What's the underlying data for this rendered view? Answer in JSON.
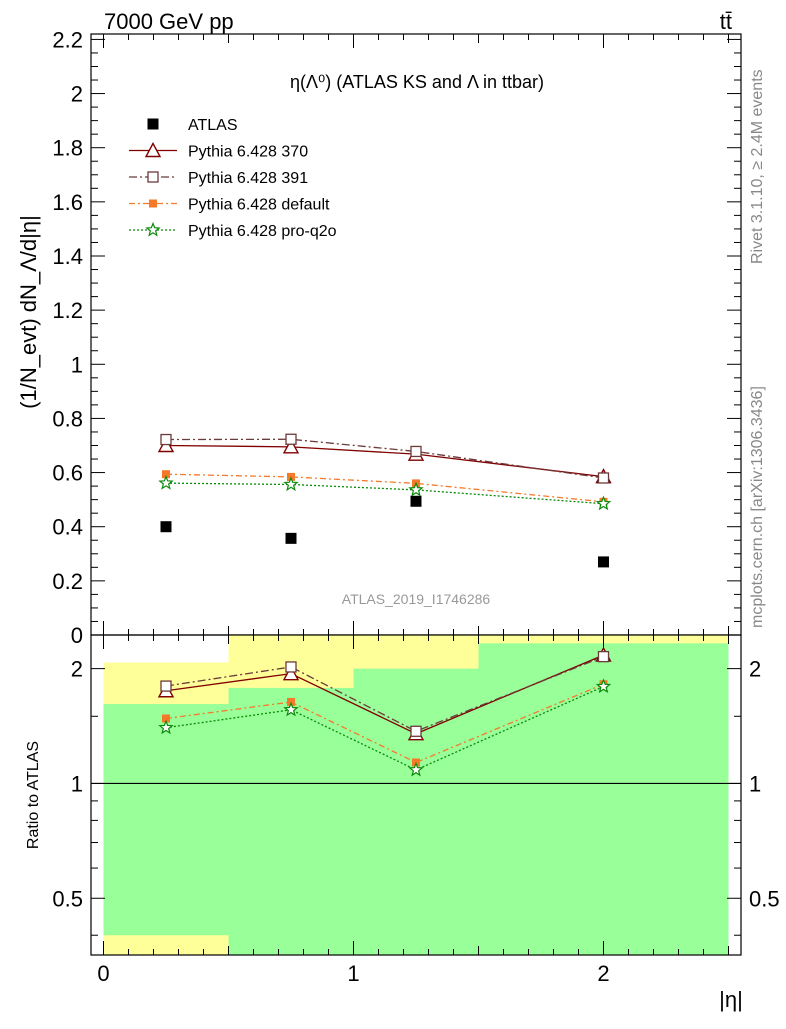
{
  "header": {
    "energy_label": "7000 GeV pp",
    "process_label": "tt̄"
  },
  "side_labels": {
    "rivet": "Rivet 3.1.10, ≥ 2.4M events",
    "mcplots": "mcplots.cern.ch [arXiv:1306.3436]"
  },
  "watermark": "ATLAS_2019_I1746286",
  "colors": {
    "atlas": "#000000",
    "p370": "#800000",
    "p391": "#6b3a3a",
    "pdefault": "#f47a2a",
    "pq2o": "#0a8a0a",
    "band_inner": "#99ff99",
    "band_outer": "#ffff99"
  },
  "chart_data": [
    {
      "type": "scatter",
      "panel": "main",
      "title": "η(Λ⁰) (ATLAS KS and Λ in ttbar)",
      "ylabel": "(1/N_evt) dN_Λ/d|η|",
      "xlim": [
        -0.05,
        2.55
      ],
      "ylim": [
        0,
        2.22
      ],
      "y_ticks": [
        0,
        0.2,
        0.4,
        0.6,
        0.8,
        1,
        1.2,
        1.4,
        1.6,
        1.8,
        2,
        2.2
      ],
      "y_tick_labels": [
        "0",
        "0.2",
        "0.4",
        "0.6",
        "0.8",
        "1",
        "1.2",
        "1.4",
        "1.6",
        "1.8",
        "2",
        "2.2"
      ],
      "x": [
        0.25,
        0.75,
        1.25,
        2.0
      ],
      "legend_position": "top-left",
      "series": [
        {
          "name": "ATLAS",
          "key": "atlas",
          "values": [
            0.4,
            0.357,
            0.494,
            0.27
          ]
        },
        {
          "name": "Pythia 6.428 370",
          "key": "p370",
          "values": [
            0.7,
            0.695,
            0.668,
            0.585
          ]
        },
        {
          "name": "Pythia 6.428 391",
          "key": "p391",
          "values": [
            0.722,
            0.723,
            0.678,
            0.58
          ]
        },
        {
          "name": "Pythia 6.428 default",
          "key": "pdefault",
          "values": [
            0.594,
            0.584,
            0.56,
            0.492
          ]
        },
        {
          "name": "Pythia 6.428 pro-q2o",
          "key": "pq2o",
          "values": [
            0.561,
            0.556,
            0.536,
            0.485
          ]
        }
      ]
    },
    {
      "type": "line",
      "panel": "ratio",
      "ylabel": "Ratio to ATLAS",
      "xlabel": "|η|",
      "y_scale": "log",
      "ylim": [
        0.355,
        2.45
      ],
      "xlim": [
        -0.05,
        2.55
      ],
      "y_ticks": [
        0.5,
        1,
        2
      ],
      "y_tick_labels": [
        "0.5",
        "1",
        "2"
      ],
      "x_ticks": [
        0,
        1,
        2
      ],
      "x_tick_labels": [
        "0",
        "1",
        "2"
      ],
      "x": [
        0.25,
        0.75,
        1.25,
        2.0
      ],
      "series": [
        {
          "key": "p370",
          "values": [
            1.75,
            1.94,
            1.35,
            2.17
          ]
        },
        {
          "key": "p391",
          "values": [
            1.8,
            2.02,
            1.37,
            2.15
          ]
        },
        {
          "key": "pdefault",
          "values": [
            1.48,
            1.635,
            1.135,
            1.82
          ]
        },
        {
          "key": "pq2o",
          "values": [
            1.4,
            1.56,
            1.085,
            1.795
          ]
        }
      ],
      "bands": [
        {
          "x": [
            0.0,
            0.5
          ],
          "inner": [
            0.4,
            1.615
          ],
          "outer": [
            0.355,
            2.075
          ]
        },
        {
          "x": [
            0.5,
            1.0
          ],
          "inner": [
            0.355,
            1.78
          ],
          "outer": [
            0.355,
            2.45
          ]
        },
        {
          "x": [
            1.0,
            1.5
          ],
          "inner": [
            0.355,
            2.0
          ],
          "outer": [
            0.355,
            2.45
          ]
        },
        {
          "x": [
            1.5,
            2.5
          ],
          "inner": [
            0.355,
            2.33
          ],
          "outer": [
            0.355,
            2.45
          ]
        }
      ]
    }
  ]
}
